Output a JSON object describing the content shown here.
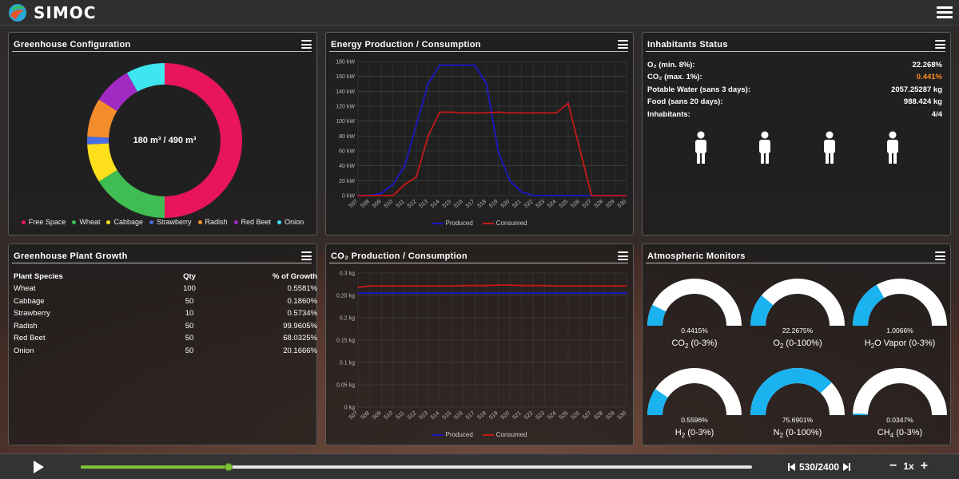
{
  "app": {
    "name": "SIMOC"
  },
  "panels": {
    "greenhouse_config": {
      "title": "Greenhouse Configuration",
      "center_label": "180 m³ / 490 m³",
      "segments": [
        {
          "name": "Free Space",
          "color": "#e8155a",
          "value": 310
        },
        {
          "name": "Wheat",
          "color": "#3fbd52",
          "value": 100
        },
        {
          "name": "Cabbage",
          "color": "#fde01b",
          "value": 50
        },
        {
          "name": "Strawberry",
          "color": "#4a6de3",
          "value": 10
        },
        {
          "name": "Radish",
          "color": "#f48c2b",
          "value": 50
        },
        {
          "name": "Red Beet",
          "color": "#a12ac2",
          "value": 50
        },
        {
          "name": "Onion",
          "color": "#3ee6ef",
          "value": 50
        }
      ]
    },
    "energy": {
      "title": "Energy Production / Consumption",
      "legend": {
        "produced": "Produced",
        "consumed": "Consumed"
      },
      "colors": {
        "produced": "#1a18c8",
        "consumed": "#c81818"
      }
    },
    "inhabitants": {
      "title": "Inhabitants Status",
      "rows": [
        {
          "label": "O₂ (min. 8%):",
          "value": "22.268%"
        },
        {
          "label": "CO₂ (max. 1%):",
          "value": "0.441%",
          "warn": true
        },
        {
          "label": "Potable Water (sans 3 days):",
          "value": "2057.25287 kg"
        },
        {
          "label": "Food (sans 20 days):",
          "value": "988.424 kg"
        },
        {
          "label": "Inhabitants:",
          "value": "4/4"
        }
      ]
    },
    "plant_growth": {
      "title": "Greenhouse Plant Growth",
      "columns": [
        "Plant Species",
        "Qty",
        "% of Growth"
      ],
      "rows": [
        [
          "Wheat",
          "100",
          "0.5581%"
        ],
        [
          "Cabbage",
          "50",
          "0.1860%"
        ],
        [
          "Strawberry",
          "10",
          "0.5734%"
        ],
        [
          "Radish",
          "50",
          "99.9605%"
        ],
        [
          "Red Beet",
          "50",
          "68.0325%"
        ],
        [
          "Onion",
          "50",
          "20.1666%"
        ]
      ]
    },
    "co2": {
      "title": "CO₂ Production / Consumption",
      "legend": {
        "produced": "Produced",
        "consumed": "Consumed"
      },
      "colors": {
        "produced": "#1a18c8",
        "consumed": "#c81818"
      }
    },
    "atmos": {
      "title": "Atmospheric Monitors",
      "gauges": [
        {
          "value_text": "0.4415%",
          "label_main": "CO",
          "label_sub": "2",
          "label_rest": " (0-3%)",
          "fraction": 0.147
        },
        {
          "value_text": "22.2675%",
          "label_main": "O",
          "label_sub": "2",
          "label_rest": " (0-100%)",
          "fraction": 0.223
        },
        {
          "value_text": "1.0066%",
          "label_main": "H",
          "label_sub": "2",
          "label_rest": "O Vapor (0-3%)",
          "fraction": 0.336
        },
        {
          "value_text": "0.5596%",
          "label_main": "H",
          "label_sub": "2",
          "label_rest": " (0-3%)",
          "fraction": 0.187
        },
        {
          "value_text": "75.6901%",
          "label_main": "N",
          "label_sub": "2",
          "label_rest": " (0-100%)",
          "fraction": 0.757
        },
        {
          "value_text": "0.0347%",
          "label_main": "CH",
          "label_sub": "4",
          "label_rest": " (0-3%)",
          "fraction": 0.012
        }
      ],
      "colors": {
        "fill": "#1ab3f0",
        "track": "#ffffff"
      }
    }
  },
  "chart_data": [
    {
      "type": "line",
      "x": [
        "507",
        "508",
        "509",
        "510",
        "511",
        "512",
        "513",
        "514",
        "515",
        "516",
        "517",
        "518",
        "519",
        "520",
        "521",
        "522",
        "523",
        "524",
        "525",
        "526",
        "527",
        "528",
        "529",
        "530"
      ],
      "series": [
        {
          "name": "Produced",
          "values": [
            0,
            0,
            3,
            15,
            40,
            95,
            150,
            175,
            175,
            175,
            175,
            150,
            60,
            20,
            5,
            0,
            0,
            0,
            0,
            0,
            0,
            0,
            0,
            0
          ]
        },
        {
          "name": "Consumed",
          "values": [
            0,
            0,
            0,
            0,
            15,
            25,
            80,
            112,
            112,
            111,
            111,
            111,
            112,
            111,
            111,
            111,
            111,
            111,
            124,
            62,
            0,
            0,
            0,
            0
          ]
        }
      ],
      "ylim": [
        0,
        180
      ],
      "y_ticks": [
        "0 kW",
        "20 kW",
        "40 kW",
        "60 kW",
        "80 kW",
        "100 kW",
        "120 kW",
        "140 kW",
        "160 kW",
        "180 kW"
      ]
    },
    {
      "type": "line",
      "x": [
        "507",
        "508",
        "509",
        "510",
        "511",
        "512",
        "513",
        "514",
        "515",
        "516",
        "517",
        "518",
        "519",
        "520",
        "521",
        "522",
        "523",
        "524",
        "525",
        "526",
        "527",
        "528",
        "529",
        "530"
      ],
      "series": [
        {
          "name": "Produced",
          "values": [
            0.255,
            0.255,
            0.255,
            0.255,
            0.255,
            0.255,
            0.255,
            0.255,
            0.255,
            0.255,
            0.255,
            0.255,
            0.255,
            0.255,
            0.255,
            0.255,
            0.255,
            0.255,
            0.255,
            0.255,
            0.255,
            0.255,
            0.255,
            0.255
          ]
        },
        {
          "name": "Consumed",
          "values": [
            0.268,
            0.271,
            0.271,
            0.271,
            0.271,
            0.271,
            0.271,
            0.271,
            0.271,
            0.272,
            0.272,
            0.272,
            0.273,
            0.273,
            0.272,
            0.272,
            0.272,
            0.271,
            0.271,
            0.271,
            0.271,
            0.271,
            0.271,
            0.271
          ]
        }
      ],
      "ylim": [
        0,
        0.3
      ],
      "y_ticks": [
        "0 kg",
        "0.05 kg",
        "0.1 kg",
        "0.15 kg",
        "0.2 kg",
        "0.25 kg",
        "0.3 kg"
      ]
    }
  ],
  "playback": {
    "step_text": "530/2400",
    "speed": "1x",
    "progress": 0.22
  }
}
